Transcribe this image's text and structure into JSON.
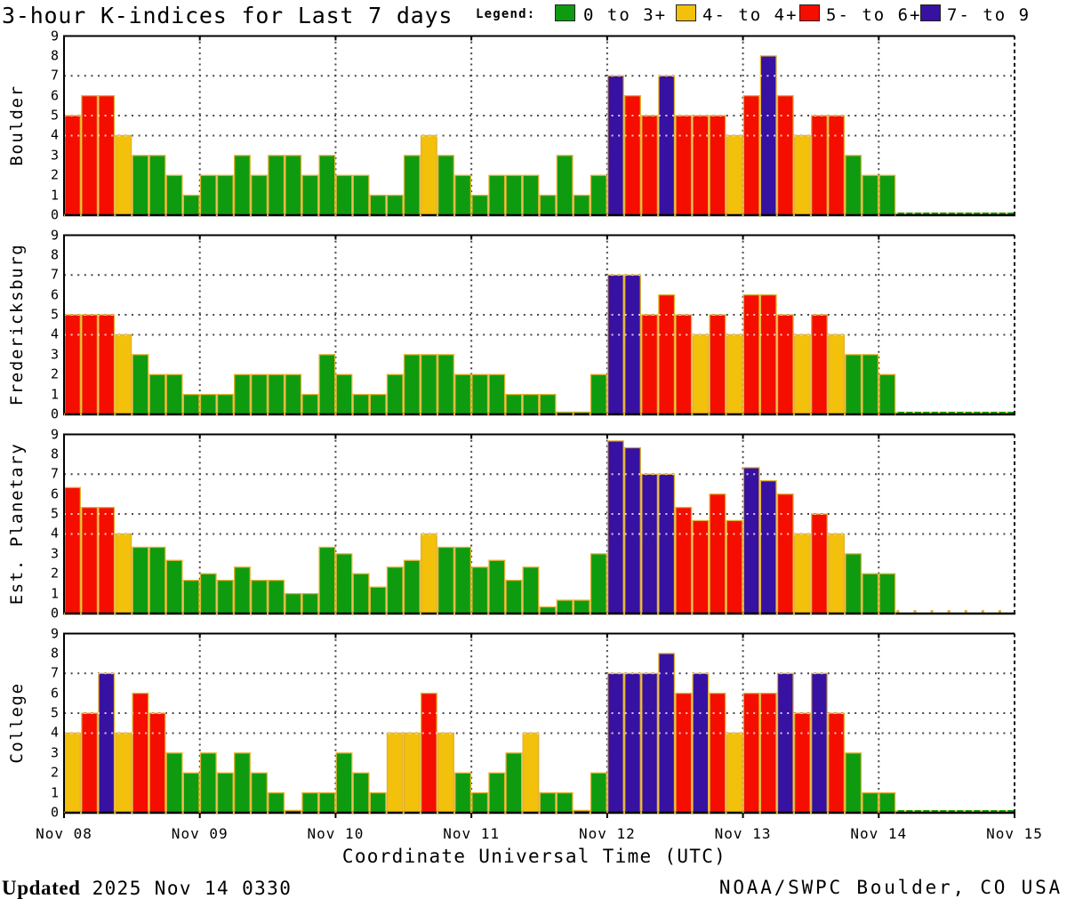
{
  "chart_data": {
    "type": "bar",
    "title": "3-hour K-indices for Last 7 days",
    "xlabel": "Coordinate Universal Time (UTC)",
    "x_tick_labels": [
      "Nov 08",
      "Nov 09",
      "Nov 10",
      "Nov 11",
      "Nov 12",
      "Nov 13",
      "Nov 14",
      "Nov 15"
    ],
    "ylim": [
      0,
      9
    ],
    "y_gridlines": [
      4,
      5,
      7
    ],
    "bars_per_day": 8,
    "hours_per_bar": 3,
    "grid": "dotted",
    "legend": {
      "label": "Legend:",
      "items": [
        {
          "label": "0 to 3+",
          "color": "#0E9B10"
        },
        {
          "label": "4- to 4+",
          "color": "#F3C00B"
        },
        {
          "label": "5- to 6+",
          "color": "#F50D00"
        },
        {
          "label": "7- to 9",
          "color": "#3711A1"
        }
      ]
    },
    "colors": {
      "green": "#0E9B10",
      "yellow": "#F3C00B",
      "red": "#F50D00",
      "purple": "#3711A1",
      "bar_outline": "#E2B12E",
      "grid_dots": "#474747",
      "frame": "#000000"
    },
    "color_thresholds": {
      "green_max": 3.34,
      "yellow_max": 4.34,
      "red_max": 6.34,
      "purple_max": 9
    },
    "panels": [
      {
        "station": "Boulder",
        "no_data_style": "strip",
        "values": [
          5,
          6,
          6,
          4,
          3,
          3,
          2,
          1,
          2,
          2,
          3,
          2,
          3,
          3,
          2,
          3,
          2,
          2,
          1,
          1,
          3,
          4,
          3,
          2,
          1,
          2,
          2,
          2,
          1,
          3,
          1,
          2,
          7,
          6,
          5,
          7,
          5,
          5,
          5,
          4,
          6,
          8,
          6,
          4,
          5,
          5,
          3,
          2,
          2
        ]
      },
      {
        "station": "Fredericksburg",
        "no_data_style": "strip",
        "values": [
          5,
          5,
          5,
          4,
          3,
          2,
          2,
          1,
          1,
          1,
          2,
          2,
          2,
          2,
          1,
          3,
          2,
          1,
          1,
          2,
          3,
          3,
          3,
          2,
          2,
          2,
          1,
          1,
          1,
          0,
          0,
          2,
          7,
          7,
          5,
          6,
          5,
          4,
          5,
          4,
          6,
          6,
          5,
          4,
          5,
          4,
          3,
          3,
          2
        ]
      },
      {
        "station": "Est. Planetary",
        "no_data_style": "ticks",
        "values": [
          6.33,
          5.33,
          5.33,
          4,
          3.33,
          3.33,
          2.67,
          1.67,
          2,
          1.67,
          2.33,
          1.67,
          1.67,
          1,
          1,
          3.33,
          3,
          2,
          1.33,
          2.33,
          2.67,
          4,
          3.33,
          3.33,
          2.33,
          2.67,
          1.67,
          2.33,
          0.33,
          0.67,
          0.67,
          3,
          8.67,
          8.33,
          7,
          7,
          5.33,
          4.67,
          6,
          4.67,
          7.33,
          6.67,
          6,
          4,
          5,
          4,
          3,
          2,
          2
        ]
      },
      {
        "station": "College",
        "no_data_style": "strip",
        "values": [
          4,
          5,
          7,
          4,
          6,
          5,
          3,
          2,
          3,
          2,
          3,
          2,
          1,
          0,
          1,
          1,
          3,
          2,
          1,
          4,
          4,
          6,
          4,
          2,
          1,
          2,
          3,
          4,
          1,
          1,
          0,
          2,
          7,
          7,
          7,
          8,
          6,
          7,
          6,
          4,
          6,
          6,
          7,
          5,
          7,
          5,
          3,
          1,
          1
        ]
      }
    ]
  },
  "footer": {
    "updated_label": "Updated",
    "updated_value": "2025 Nov 14 0330",
    "credit": "NOAA/SWPC Boulder, CO USA"
  }
}
